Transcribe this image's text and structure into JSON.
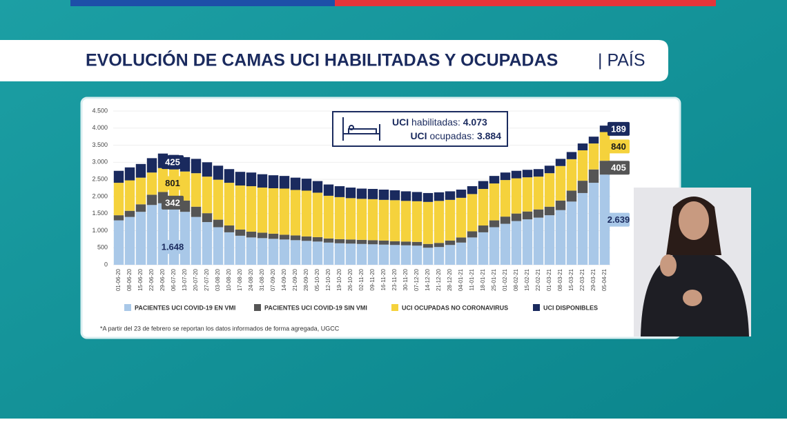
{
  "header": {
    "title": "EVOLUCIÓN DE CAMAS UCI HABILITADAS Y OCUPADAS",
    "subtitle": "| PAÍS"
  },
  "info": {
    "habilitadas": {
      "prefix": "UCI",
      "label": "habilitadas:",
      "value": "4.073"
    },
    "ocupadas": {
      "prefix": "UCI",
      "label": "ocupadas:",
      "value": "3.884"
    }
  },
  "chart_data": {
    "type": "bar",
    "stacked": true,
    "categories": [
      "01-06-20",
      "08-06-20",
      "15-06-20",
      "22-06-20",
      "29-06-20",
      "06-07-20",
      "13-07-20",
      "20-07-20",
      "27-07-20",
      "03-08-20",
      "10-08-20",
      "17-08-20",
      "24-08-20",
      "31-08-20",
      "07-09-20",
      "14-09-20",
      "21-09-20",
      "28-09-20",
      "05-10-20",
      "12-10-20",
      "19-10-20",
      "26-10-20",
      "02-11-20",
      "09-11-20",
      "16-11-20",
      "23-11-20",
      "30-11-20",
      "07-12-20",
      "14-12-20",
      "21-12-20",
      "28-12-20",
      "04-01-21",
      "11-01-21",
      "18-01-21",
      "25-01-21",
      "01-02-21",
      "08-02-21",
      "15-02-21",
      "22-02-21",
      "01-03-21",
      "08-03-21",
      "15-03-21",
      "22-03-21",
      "29-03-21",
      "05-04-21"
    ],
    "series": [
      {
        "name": "PACIENTES UCI COVID-19 EN VMI",
        "color": "#a9c8e8",
        "label_color": "#1a2a5e",
        "values": [
          1300,
          1400,
          1550,
          1750,
          1800,
          1648,
          1550,
          1400,
          1250,
          1100,
          950,
          850,
          800,
          780,
          760,
          740,
          720,
          700,
          680,
          650,
          630,
          620,
          610,
          600,
          590,
          580,
          570,
          560,
          500,
          520,
          580,
          650,
          800,
          950,
          1100,
          1200,
          1280,
          1330,
          1380,
          1450,
          1600,
          1850,
          2100,
          2400,
          2639
        ],
        "value_labels": [
          null,
          null,
          null,
          null,
          null,
          "1.648",
          null,
          null,
          null,
          null,
          null,
          null,
          null,
          null,
          null,
          null,
          null,
          null,
          null,
          null,
          null,
          null,
          null,
          null,
          null,
          null,
          null,
          null,
          null,
          null,
          null,
          null,
          null,
          null,
          null,
          null,
          null,
          null,
          null,
          null,
          null,
          null,
          null,
          null,
          "2.639"
        ]
      },
      {
        "name": "PACIENTES UCI COVID-19 SIN VMI",
        "color": "#555555",
        "label_color": "#ffffff",
        "values": [
          150,
          180,
          220,
          300,
          330,
          342,
          330,
          300,
          260,
          220,
          200,
          180,
          170,
          160,
          150,
          140,
          140,
          130,
          130,
          120,
          120,
          120,
          120,
          120,
          120,
          110,
          110,
          110,
          110,
          120,
          130,
          150,
          180,
          200,
          200,
          210,
          220,
          230,
          240,
          250,
          280,
          320,
          360,
          390,
          405
        ],
        "value_labels": [
          null,
          null,
          null,
          null,
          null,
          "342",
          null,
          null,
          null,
          null,
          null,
          null,
          null,
          null,
          null,
          null,
          null,
          null,
          null,
          null,
          null,
          null,
          null,
          null,
          null,
          null,
          null,
          null,
          null,
          null,
          null,
          null,
          null,
          null,
          null,
          null,
          null,
          null,
          null,
          null,
          null,
          null,
          null,
          null,
          "405"
        ]
      },
      {
        "name": "UCI OCUPADAS NO CORONAVIRUS",
        "color": "#f5d23c",
        "label_color": "#1a1a1a",
        "values": [
          950,
          890,
          780,
          650,
          700,
          801,
          850,
          980,
          1070,
          1170,
          1250,
          1290,
          1330,
          1320,
          1330,
          1350,
          1330,
          1340,
          1300,
          1250,
          1230,
          1210,
          1200,
          1200,
          1190,
          1200,
          1190,
          1190,
          1230,
          1230,
          1190,
          1160,
          1090,
          1070,
          1080,
          1070,
          1030,
          1000,
          960,
          980,
          1010,
          920,
          890,
          760,
          840
        ],
        "value_labels": [
          null,
          null,
          null,
          null,
          null,
          "801",
          null,
          null,
          null,
          null,
          null,
          null,
          null,
          null,
          null,
          null,
          null,
          null,
          null,
          null,
          null,
          null,
          null,
          null,
          null,
          null,
          null,
          null,
          null,
          null,
          null,
          null,
          null,
          null,
          null,
          null,
          null,
          null,
          null,
          null,
          null,
          null,
          null,
          null,
          "840"
        ]
      },
      {
        "name": "UCI DISPONIBLES",
        "color": "#1a2a5e",
        "label_color": "#ffffff",
        "values": [
          350,
          380,
          400,
          420,
          425,
          425,
          420,
          420,
          420,
          410,
          400,
          400,
          400,
          390,
          380,
          370,
          360,
          350,
          340,
          330,
          320,
          310,
          300,
          300,
          300,
          290,
          280,
          270,
          260,
          250,
          250,
          240,
          230,
          230,
          220,
          220,
          220,
          220,
          220,
          220,
          210,
          210,
          200,
          200,
          189
        ],
        "value_labels": [
          null,
          null,
          null,
          null,
          null,
          "425",
          null,
          null,
          null,
          null,
          null,
          null,
          null,
          null,
          null,
          null,
          null,
          null,
          null,
          null,
          null,
          null,
          null,
          null,
          null,
          null,
          null,
          null,
          null,
          null,
          null,
          null,
          null,
          null,
          null,
          null,
          null,
          null,
          null,
          null,
          null,
          null,
          null,
          null,
          "189"
        ]
      }
    ],
    "ylim": [
      0,
      4500
    ],
    "yticks": [
      0,
      500,
      {
        "value": 1000,
        "label": "1.000"
      },
      {
        "value": 1500,
        "label": "1.500"
      },
      {
        "value": 2000,
        "label": "2.000"
      },
      {
        "value": 2500,
        "label": "2.500"
      },
      {
        "value": 3000,
        "label": "3.000"
      },
      {
        "value": 3500,
        "label": "3.500"
      },
      {
        "value": 4000,
        "label": "4.000"
      },
      {
        "value": 4500,
        "label": "4.500"
      }
    ],
    "grid": true,
    "legend": "bottom",
    "footnote": "*A partir del 23 de febrero se reportan los datos informados de forma agregada, UGCC"
  }
}
